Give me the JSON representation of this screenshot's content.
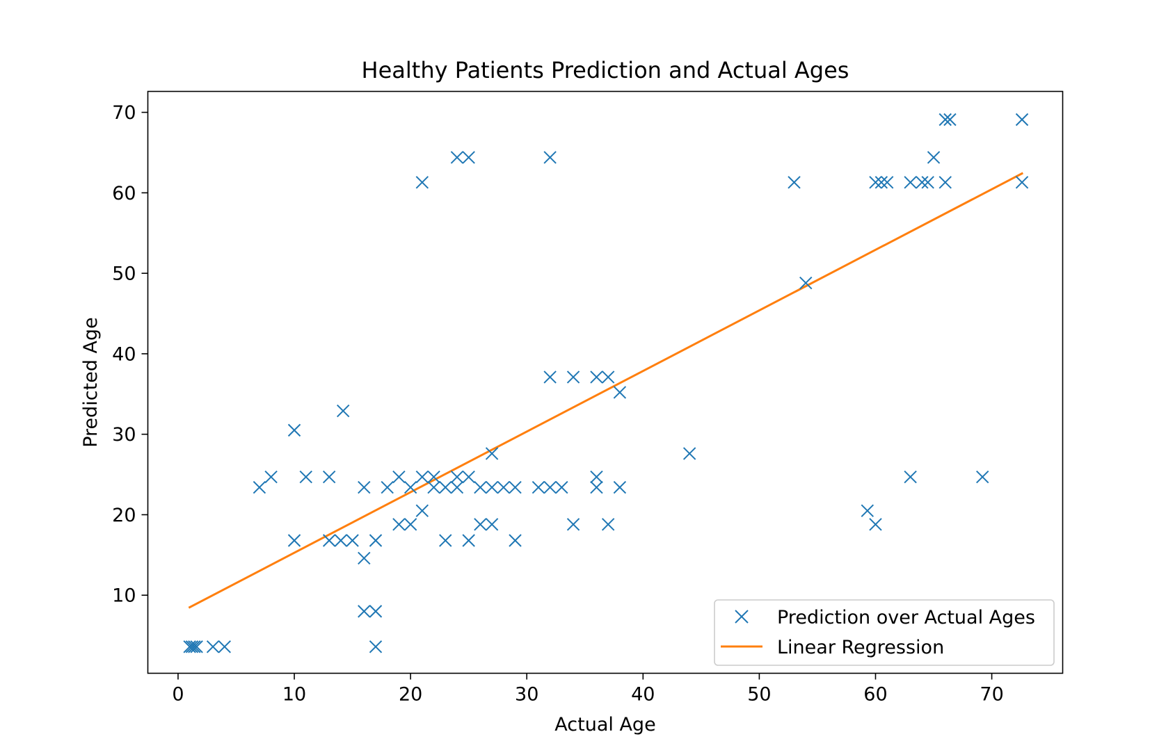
{
  "chart_data": {
    "type": "scatter",
    "title": "Healthy Patients Prediction and Actual Ages",
    "xlabel": "Actual Age",
    "ylabel": "Predicted Age",
    "xlim": [
      -2.6,
      76.1
    ],
    "ylim": [
      0.3,
      72.6
    ],
    "xticks": [
      0,
      10,
      20,
      30,
      40,
      50,
      60,
      70
    ],
    "yticks": [
      10,
      20,
      30,
      40,
      50,
      60,
      70
    ],
    "legend_position": "lower right",
    "series": [
      {
        "name": "Prediction over Actual Ages",
        "kind": "scatter",
        "marker": "x",
        "color": "#1f77b4",
        "points": [
          [
            1,
            3.6
          ],
          [
            1.2,
            3.6
          ],
          [
            1.4,
            3.6
          ],
          [
            1.6,
            3.6
          ],
          [
            3,
            3.6
          ],
          [
            4,
            3.6
          ],
          [
            7,
            23.4
          ],
          [
            8,
            24.7
          ],
          [
            10,
            30.5
          ],
          [
            10,
            16.8
          ],
          [
            11,
            24.7
          ],
          [
            13,
            24.7
          ],
          [
            13,
            16.8
          ],
          [
            14,
            16.8
          ],
          [
            14.2,
            32.9
          ],
          [
            15,
            16.8
          ],
          [
            16,
            23.4
          ],
          [
            16,
            14.6
          ],
          [
            16,
            8.0
          ],
          [
            17,
            8.0
          ],
          [
            17,
            16.8
          ],
          [
            17,
            3.6
          ],
          [
            18,
            23.4
          ],
          [
            19,
            24.7
          ],
          [
            19,
            18.8
          ],
          [
            20,
            23.4
          ],
          [
            20,
            18.8
          ],
          [
            21,
            61.3
          ],
          [
            21,
            24.7
          ],
          [
            21,
            20.5
          ],
          [
            22,
            24.7
          ],
          [
            22,
            23.4
          ],
          [
            23,
            23.4
          ],
          [
            23,
            16.8
          ],
          [
            24,
            64.4
          ],
          [
            24,
            24.7
          ],
          [
            24,
            23.4
          ],
          [
            25,
            64.4
          ],
          [
            25,
            24.7
          ],
          [
            25,
            16.8
          ],
          [
            26,
            23.4
          ],
          [
            26,
            18.8
          ],
          [
            27,
            27.6
          ],
          [
            27,
            23.4
          ],
          [
            27,
            18.8
          ],
          [
            28,
            23.4
          ],
          [
            29,
            23.4
          ],
          [
            29,
            16.8
          ],
          [
            31,
            23.4
          ],
          [
            32,
            64.4
          ],
          [
            32,
            37.1
          ],
          [
            32,
            23.4
          ],
          [
            33,
            23.4
          ],
          [
            34,
            37.1
          ],
          [
            34,
            18.8
          ],
          [
            36,
            37.1
          ],
          [
            36,
            24.7
          ],
          [
            36,
            23.4
          ],
          [
            37,
            37.1
          ],
          [
            37,
            18.8
          ],
          [
            38,
            35.2
          ],
          [
            38,
            23.4
          ],
          [
            44,
            27.6
          ],
          [
            53,
            61.3
          ],
          [
            54,
            48.8
          ],
          [
            59.3,
            20.5
          ],
          [
            60,
            61.3
          ],
          [
            60,
            18.8
          ],
          [
            60.5,
            61.3
          ],
          [
            61,
            61.3
          ],
          [
            63,
            61.3
          ],
          [
            63,
            24.7
          ],
          [
            64,
            61.3
          ],
          [
            64.5,
            61.3
          ],
          [
            65,
            64.4
          ],
          [
            66,
            69.1
          ],
          [
            66,
            61.3
          ],
          [
            66.4,
            69.1
          ],
          [
            69.2,
            24.7
          ],
          [
            72.6,
            69.1
          ],
          [
            72.6,
            61.3
          ]
        ]
      },
      {
        "name": "Linear Regression",
        "kind": "line",
        "color": "#ff7f0e",
        "x": [
          1,
          72.6
        ],
        "y": [
          8.5,
          62.4
        ]
      }
    ]
  }
}
